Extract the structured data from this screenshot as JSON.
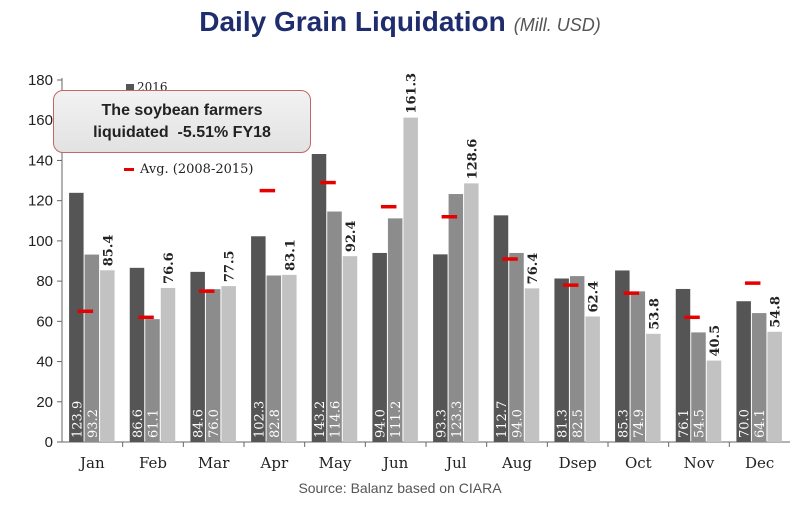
{
  "chart_data": {
    "type": "bar",
    "title": "Daily Grain Liquidation",
    "unit": "(Mill. USD)",
    "categories": [
      "Jan",
      "Feb",
      "Mar",
      "Apr",
      "May",
      "Jun",
      "Jul",
      "Aug",
      "Dsep",
      "Oct",
      "Nov",
      "Dec"
    ],
    "series": [
      {
        "name": "2016",
        "values": [
          123.9,
          86.6,
          84.6,
          102.3,
          143.2,
          94.0,
          93.3,
          112.7,
          81.3,
          85.3,
          76.1,
          70.0
        ],
        "color": "#555555"
      },
      {
        "values": [
          93.2,
          61.1,
          76.0,
          82.8,
          114.6,
          111.2,
          123.3,
          94.0,
          82.5,
          74.9,
          54.5,
          64.1
        ],
        "color": "#8c8c8c"
      },
      {
        "values": [
          85.4,
          76.6,
          77.5,
          83.1,
          92.4,
          161.3,
          128.6,
          76.4,
          62.4,
          53.8,
          40.5,
          54.8
        ],
        "color": "#c2c2c2"
      }
    ],
    "average": {
      "name": "Avg. (2008-2015)",
      "values": [
        65,
        62,
        75,
        125,
        129,
        117,
        112,
        91,
        78,
        74,
        62,
        79
      ],
      "color": "#e60000"
    },
    "ylim": [
      0,
      180
    ],
    "yticks": [
      0,
      20,
      40,
      60,
      80,
      100,
      120,
      140,
      160,
      180
    ],
    "grid": false,
    "legend": "top-left",
    "annotation": {
      "line1": "The soybean farmers",
      "line2": "liquidated  -5.51% FY18"
    },
    "source": "Source: Balanz based on CIARA"
  }
}
